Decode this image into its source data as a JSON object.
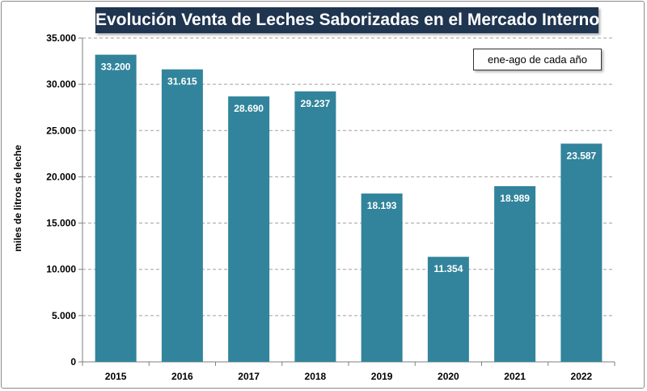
{
  "chart_data": {
    "type": "bar",
    "title": "Evolución Venta de Leches Saborizadas en el Mercado Interno",
    "annotation": "ene-ago de cada año",
    "xlabel": "",
    "ylabel": "miles de litros de leche",
    "categories": [
      "2015",
      "2016",
      "2017",
      "2018",
      "2019",
      "2020",
      "2021",
      "2022"
    ],
    "values": [
      33200,
      31615,
      28690,
      29237,
      18193,
      11354,
      18989,
      23587
    ],
    "value_labels": [
      "33.200",
      "31.615",
      "28.690",
      "29.237",
      "18.193",
      "11.354",
      "18.989",
      "23.587"
    ],
    "ylim": [
      0,
      35000
    ],
    "yticks": [
      0,
      5000,
      10000,
      15000,
      20000,
      25000,
      30000,
      35000
    ],
    "ytick_labels": [
      "0",
      "5.000",
      "10.000",
      "15.000",
      "20.000",
      "25.000",
      "30.000",
      "35.000"
    ],
    "grid": "horizontal dashed",
    "legend": "none",
    "colors": {
      "bar": "#31849b",
      "title_bg": "#1f3550",
      "grid": "#a0a0a0",
      "axis": "#7f7f7f"
    }
  }
}
